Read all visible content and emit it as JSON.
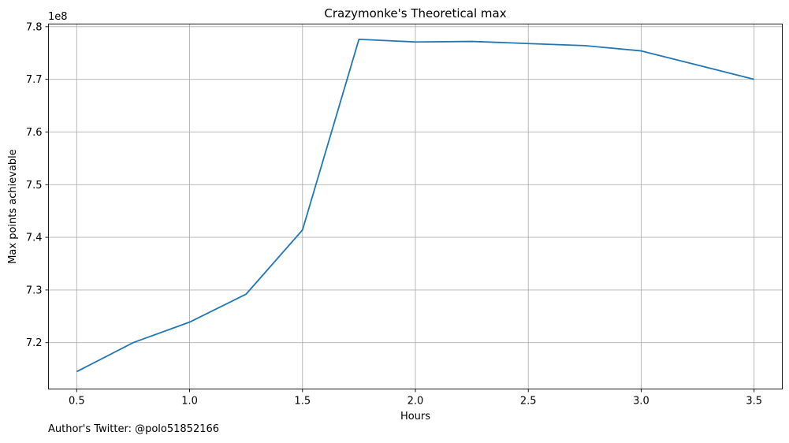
{
  "chart_data": {
    "type": "line",
    "title": "Crazymonke's Theoretical max",
    "xlabel": "Hours",
    "ylabel": "Max points achievable",
    "y_offset_label": "1e8",
    "x_ticks": [
      "0.5",
      "1.0",
      "1.5",
      "2.0",
      "2.5",
      "3.0",
      "3.5"
    ],
    "x_tick_values": [
      0.5,
      1.0,
      1.5,
      2.0,
      2.5,
      3.0,
      3.5
    ],
    "y_ticks": [
      "7.2",
      "7.3",
      "7.4",
      "7.5",
      "7.6",
      "7.7",
      "7.8"
    ],
    "y_tick_values": [
      720000000,
      730000000,
      740000000,
      750000000,
      760000000,
      770000000,
      780000000
    ],
    "xlim": [
      0.375,
      3.625
    ],
    "ylim": [
      711200000,
      780500000
    ],
    "grid": true,
    "series": [
      {
        "color": "#1f77b4",
        "x": [
          0.5,
          0.75,
          1.0,
          1.25,
          1.5,
          1.75,
          2.0,
          2.25,
          2.5,
          2.75,
          3.0,
          3.5
        ],
        "y": [
          714500000,
          720000000,
          723900000,
          729200000,
          741400000,
          777600000,
          777100000,
          777200000,
          776800000,
          776400000,
          775400000,
          770000000
        ]
      }
    ]
  },
  "footer_note": "Author's Twitter: @polo51852166"
}
